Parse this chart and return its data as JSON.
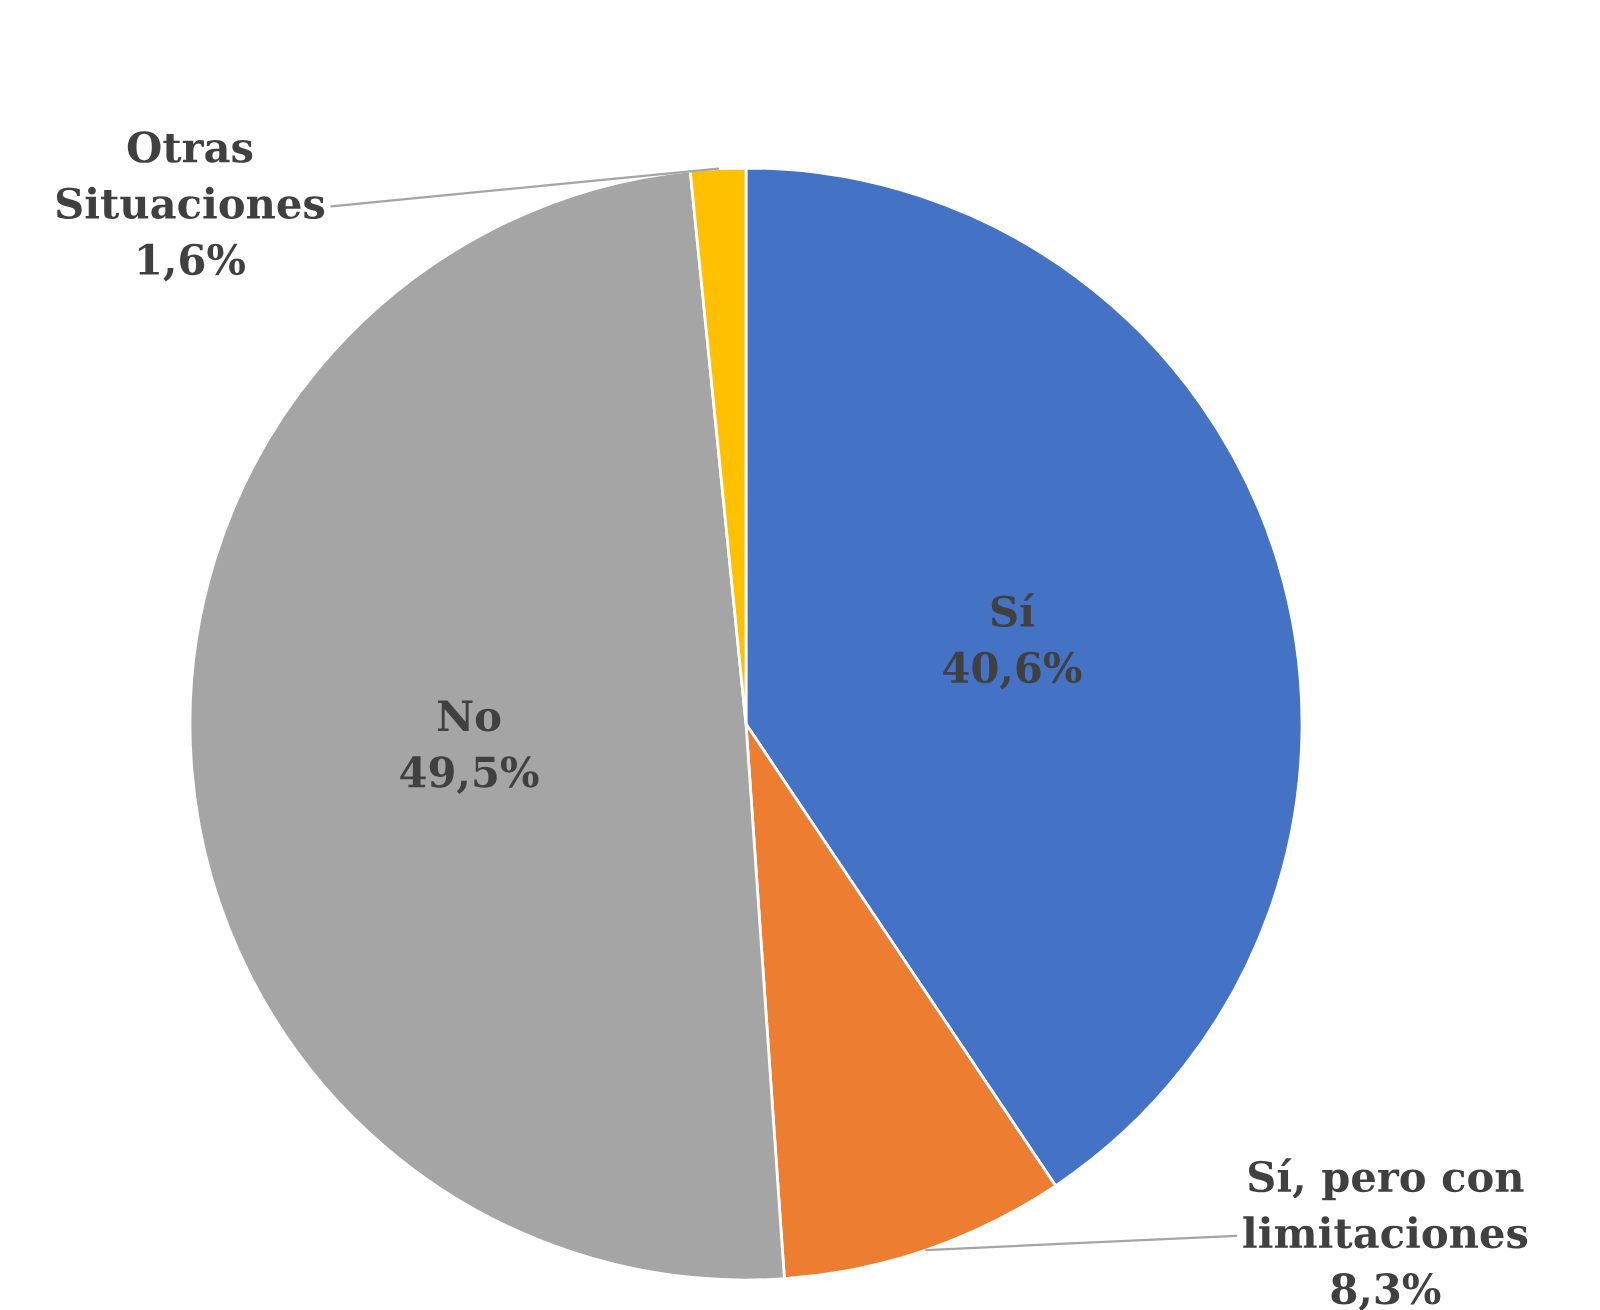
{
  "chart_data": {
    "type": "pie",
    "categories": [
      "Sí",
      "Sí, pero con limitaciones",
      "No",
      "Otras Situaciones"
    ],
    "values": [
      40.6,
      8.3,
      49.5,
      1.6
    ],
    "value_labels": [
      "40,6%",
      "8,3%",
      "49,5%",
      "1,6%"
    ],
    "colors": [
      "#4472c4",
      "#ed7d31",
      "#a5a5a5",
      "#ffc000"
    ],
    "legend": false
  }
}
